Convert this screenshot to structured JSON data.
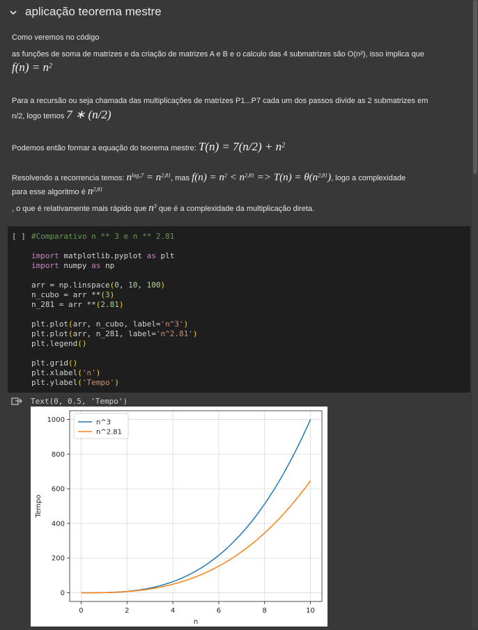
{
  "section": {
    "title": "aplicação teorema mestre",
    "chevron_icon": "chevron-down-icon"
  },
  "markdown": {
    "line1": "Como veremos no código",
    "line2": "as funções de soma de matrizes e da criação de matrizes A e B e o calculo das 4 submatrizes são O(n²), isso implica que",
    "eq1_f": "f",
    "eq1_rest": "(n) = n",
    "eq1_exp": "2",
    "line3a": "Para a recursão ou seja chamada das multiplicações de matrizes P1...P7 cada um dos passos divide as 2 submatrizes em",
    "line3b": "n/2, logo temos",
    "eq2": "7 ∗ (n/2)",
    "line4": "Podemos então formar a equação do teorema mestre:",
    "eq3": "T(n) = 7(n/2) + n",
    "eq3_exp": "2",
    "line5_pre": "Resolvendo a recorrencia temos:",
    "line5_n": "n",
    "line5_exp": "log₂7",
    "line5_eq": " = n",
    "line5_exp2": "2,81",
    "line5_mid": ", mas",
    "line5_f": "f(n) = n",
    "line5_f_exp": "2",
    "line5_lt": " < n",
    "line5_lt_exp": "2,81",
    "line5_impl": " => T(n) = θ(n",
    "line5_impl_exp": "2,81",
    "line5_impl_close": ")",
    "line5_post": ", logo a complexidade",
    "line6": "para esse algoritmo é",
    "line6_n": "n",
    "line6_exp": "2,81",
    "line7_pre": ", o que é relativamente mais rápido que",
    "line7_n": "n",
    "line7_exp": "3",
    "line7_post": "que é a complexidade da multiplicação direta."
  },
  "code_cell": {
    "run_indicator": "[ ]"
  },
  "output": {
    "text": "Text(0, 0.5, 'Tempo')",
    "icon": "output-redirect-icon"
  },
  "chart_data": {
    "type": "line",
    "xlabel": "n",
    "ylabel": "Tempo",
    "xlim": [
      -0.5,
      10.5
    ],
    "ylim": [
      -50,
      1050
    ],
    "xticks": [
      0,
      2,
      4,
      6,
      8,
      10
    ],
    "yticks": [
      0,
      200,
      400,
      600,
      800,
      1000
    ],
    "grid": true,
    "legend_position": "top-left",
    "x": [
      0,
      1,
      2,
      3,
      4,
      5,
      6,
      7,
      8,
      9,
      10
    ],
    "series": [
      {
        "name": "n^3",
        "color": "#1f77b4",
        "values": [
          0,
          1,
          8,
          27,
          64,
          125,
          216,
          343,
          512,
          729,
          1000
        ]
      },
      {
        "name": "n^2.81",
        "color": "#ff7f0e",
        "values": [
          0,
          1,
          7.01,
          21.9,
          49.2,
          92.3,
          154,
          237,
          345,
          480,
          646
        ]
      }
    ]
  }
}
